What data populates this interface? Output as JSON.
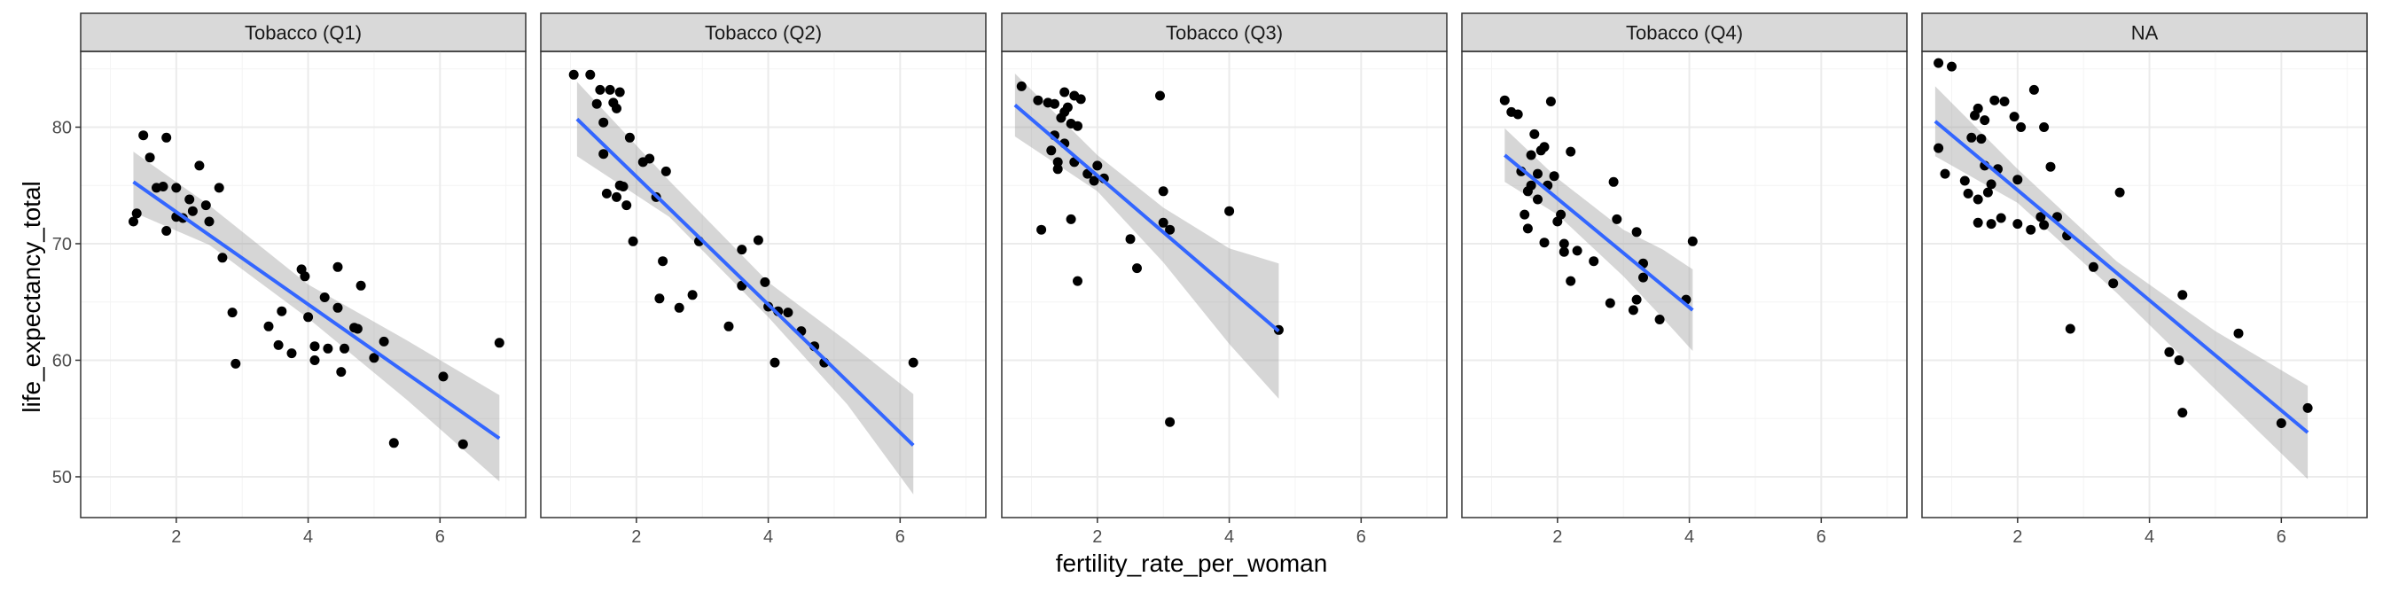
{
  "chart_data": {
    "type": "scatter",
    "xlabel": "fertility_rate_per_woman",
    "ylabel": "life_expectancy_total",
    "xlim": [
      0.55,
      7.3
    ],
    "ylim": [
      46.5,
      86.5
    ],
    "x_ticks": [
      2,
      4,
      6
    ],
    "y_ticks": [
      50,
      60,
      70,
      80
    ],
    "grid": true,
    "smooth": "linear fit with 95% confidence band",
    "colors": {
      "points": "#000000",
      "fit_line": "#3366ff",
      "band": "#999999",
      "strip_bg": "#d9d9d9",
      "grid_major": "#ebebeb",
      "grid_minor": "#f4f4f4",
      "panel_border": "#333333",
      "tick_text": "#4d4d4d"
    },
    "panels": [
      {
        "name": "Tobacco (Q1)",
        "fit": {
          "x": [
            1.35,
            6.9
          ],
          "y": [
            75.3,
            53.3
          ]
        },
        "band": {
          "x": [
            1.35,
            2.5,
            4.0,
            5.5,
            6.9
          ],
          "lo": [
            72.7,
            69.9,
            63.6,
            56.6,
            49.6
          ],
          "hi": [
            77.9,
            73.3,
            66.5,
            61.7,
            57.0
          ]
        },
        "points": [
          [
            1.35,
            71.9
          ],
          [
            1.4,
            72.6
          ],
          [
            1.5,
            79.3
          ],
          [
            1.6,
            77.4
          ],
          [
            1.7,
            74.8
          ],
          [
            1.8,
            74.9
          ],
          [
            1.85,
            79.1
          ],
          [
            1.85,
            71.1
          ],
          [
            2.0,
            74.8
          ],
          [
            2.0,
            72.3
          ],
          [
            2.1,
            72.2
          ],
          [
            2.2,
            73.8
          ],
          [
            2.25,
            72.8
          ],
          [
            2.35,
            76.7
          ],
          [
            2.45,
            73.3
          ],
          [
            2.5,
            71.9
          ],
          [
            2.65,
            74.8
          ],
          [
            2.7,
            68.8
          ],
          [
            2.85,
            64.1
          ],
          [
            2.9,
            59.7
          ],
          [
            3.4,
            62.9
          ],
          [
            3.6,
            64.2
          ],
          [
            3.55,
            61.3
          ],
          [
            3.75,
            60.6
          ],
          [
            3.9,
            67.8
          ],
          [
            3.95,
            67.2
          ],
          [
            4.0,
            63.7
          ],
          [
            4.1,
            61.2
          ],
          [
            4.1,
            60.0
          ],
          [
            4.25,
            65.4
          ],
          [
            4.3,
            61.0
          ],
          [
            4.45,
            68.0
          ],
          [
            4.45,
            64.5
          ],
          [
            4.5,
            59.0
          ],
          [
            4.55,
            61.0
          ],
          [
            4.7,
            62.8
          ],
          [
            4.75,
            62.7
          ],
          [
            4.8,
            66.4
          ],
          [
            5.0,
            60.2
          ],
          [
            5.15,
            61.6
          ],
          [
            5.3,
            52.9
          ],
          [
            6.05,
            58.6
          ],
          [
            6.35,
            52.8
          ],
          [
            6.9,
            61.5
          ]
        ]
      },
      {
        "name": "Tobacco (Q2)",
        "fit": {
          "x": [
            1.1,
            6.2
          ],
          "y": [
            80.7,
            52.7
          ]
        },
        "band": {
          "x": [
            1.1,
            2.5,
            4.0,
            5.2,
            6.2
          ],
          "lo": [
            77.5,
            72.3,
            63.7,
            56.2,
            48.5
          ],
          "hi": [
            83.9,
            75.4,
            66.7,
            61.6,
            57.1
          ]
        },
        "points": [
          [
            1.05,
            84.5
          ],
          [
            1.3,
            84.5
          ],
          [
            1.45,
            83.2
          ],
          [
            1.4,
            82.0
          ],
          [
            1.5,
            80.4
          ],
          [
            1.5,
            77.7
          ],
          [
            1.55,
            74.3
          ],
          [
            1.6,
            83.2
          ],
          [
            1.65,
            82.1
          ],
          [
            1.7,
            74.0
          ],
          [
            1.7,
            81.6
          ],
          [
            1.75,
            83.0
          ],
          [
            1.75,
            75.0
          ],
          [
            1.8,
            74.9
          ],
          [
            1.85,
            73.3
          ],
          [
            1.9,
            79.1
          ],
          [
            1.95,
            70.2
          ],
          [
            2.1,
            77.0
          ],
          [
            2.2,
            77.3
          ],
          [
            2.3,
            74.0
          ],
          [
            2.35,
            65.3
          ],
          [
            2.4,
            68.5
          ],
          [
            2.45,
            76.2
          ],
          [
            2.65,
            64.5
          ],
          [
            2.85,
            65.6
          ],
          [
            2.95,
            70.2
          ],
          [
            3.4,
            62.9
          ],
          [
            3.6,
            66.4
          ],
          [
            3.6,
            69.5
          ],
          [
            3.85,
            70.3
          ],
          [
            3.95,
            66.7
          ],
          [
            4.0,
            64.6
          ],
          [
            4.1,
            59.8
          ],
          [
            4.15,
            64.2
          ],
          [
            4.3,
            64.1
          ],
          [
            4.5,
            62.5
          ],
          [
            4.7,
            61.2
          ],
          [
            4.85,
            59.8
          ],
          [
            6.2,
            59.8
          ]
        ]
      },
      {
        "name": "Tobacco (Q3)",
        "fit": {
          "x": [
            0.75,
            4.75
          ],
          "y": [
            81.9,
            62.5
          ]
        },
        "band": {
          "x": [
            0.75,
            2.0,
            3.0,
            4.0,
            4.75
          ],
          "lo": [
            79.2,
            74.5,
            68.4,
            61.4,
            56.7
          ],
          "hi": [
            84.6,
            77.6,
            73.1,
            69.6,
            68.3
          ]
        },
        "points": [
          [
            0.85,
            83.5
          ],
          [
            1.1,
            82.3
          ],
          [
            1.15,
            71.2
          ],
          [
            1.25,
            82.1
          ],
          [
            1.3,
            78.0
          ],
          [
            1.35,
            82.0
          ],
          [
            1.35,
            79.3
          ],
          [
            1.4,
            76.4
          ],
          [
            1.4,
            77.0
          ],
          [
            1.45,
            80.8
          ],
          [
            1.5,
            81.3
          ],
          [
            1.5,
            83.0
          ],
          [
            1.5,
            78.6
          ],
          [
            1.55,
            81.7
          ],
          [
            1.6,
            72.1
          ],
          [
            1.6,
            80.3
          ],
          [
            1.65,
            82.7
          ],
          [
            1.65,
            77.0
          ],
          [
            1.75,
            82.4
          ],
          [
            1.7,
            80.1
          ],
          [
            1.7,
            66.8
          ],
          [
            1.85,
            76.0
          ],
          [
            1.95,
            75.4
          ],
          [
            2.0,
            76.7
          ],
          [
            2.1,
            75.6
          ],
          [
            2.5,
            70.4
          ],
          [
            2.6,
            67.9
          ],
          [
            2.95,
            82.7
          ],
          [
            3.0,
            74.5
          ],
          [
            3.0,
            71.8
          ],
          [
            3.1,
            71.2
          ],
          [
            3.1,
            54.7
          ],
          [
            4.0,
            72.8
          ],
          [
            4.75,
            62.6
          ]
        ]
      },
      {
        "name": "Tobacco (Q4)",
        "fit": {
          "x": [
            1.2,
            4.05
          ],
          "y": [
            77.6,
            64.3
          ]
        },
        "band": {
          "x": [
            1.2,
            2.0,
            3.0,
            3.6,
            4.05
          ],
          "lo": [
            75.3,
            72.5,
            67.2,
            63.6,
            60.8
          ],
          "hi": [
            79.9,
            75.6,
            71.2,
            69.5,
            67.8
          ]
        },
        "points": [
          [
            1.2,
            82.3
          ],
          [
            1.3,
            81.3
          ],
          [
            1.4,
            81.1
          ],
          [
            1.45,
            76.2
          ],
          [
            1.5,
            72.5
          ],
          [
            1.55,
            74.5
          ],
          [
            1.6,
            75.0
          ],
          [
            1.55,
            71.3
          ],
          [
            1.6,
            77.6
          ],
          [
            1.65,
            79.4
          ],
          [
            1.7,
            76.0
          ],
          [
            1.7,
            73.8
          ],
          [
            1.75,
            78.0
          ],
          [
            1.8,
            78.3
          ],
          [
            1.8,
            70.1
          ],
          [
            1.85,
            75.0
          ],
          [
            1.9,
            82.2
          ],
          [
            1.95,
            75.8
          ],
          [
            2.0,
            71.9
          ],
          [
            2.05,
            72.5
          ],
          [
            2.1,
            70.0
          ],
          [
            2.1,
            69.3
          ],
          [
            2.2,
            77.9
          ],
          [
            2.2,
            66.8
          ],
          [
            2.3,
            69.4
          ],
          [
            2.55,
            68.5
          ],
          [
            2.8,
            64.9
          ],
          [
            2.85,
            75.3
          ],
          [
            2.9,
            72.1
          ],
          [
            3.15,
            64.3
          ],
          [
            3.2,
            65.2
          ],
          [
            3.2,
            71.0
          ],
          [
            3.3,
            68.3
          ],
          [
            3.3,
            67.1
          ],
          [
            3.55,
            63.5
          ],
          [
            3.95,
            65.2
          ],
          [
            4.05,
            70.2
          ]
        ]
      },
      {
        "name": "NA",
        "fit": {
          "x": [
            0.75,
            6.4
          ],
          "y": [
            80.5,
            53.8
          ]
        },
        "band": {
          "x": [
            0.75,
            2.0,
            3.5,
            5.0,
            6.4
          ],
          "lo": [
            77.5,
            73.5,
            65.8,
            57.5,
            49.8
          ],
          "hi": [
            83.5,
            76.4,
            68.5,
            62.5,
            57.8
          ]
        },
        "points": [
          [
            0.8,
            85.5
          ],
          [
            0.8,
            78.2
          ],
          [
            0.9,
            76.0
          ],
          [
            1.0,
            85.2
          ],
          [
            1.2,
            75.4
          ],
          [
            1.25,
            74.3
          ],
          [
            1.3,
            79.1
          ],
          [
            1.35,
            81.0
          ],
          [
            1.4,
            81.6
          ],
          [
            1.4,
            73.8
          ],
          [
            1.4,
            71.8
          ],
          [
            1.45,
            79.0
          ],
          [
            1.5,
            80.6
          ],
          [
            1.5,
            76.7
          ],
          [
            1.55,
            74.4
          ],
          [
            1.6,
            71.7
          ],
          [
            1.6,
            75.1
          ],
          [
            1.65,
            82.3
          ],
          [
            1.7,
            76.4
          ],
          [
            1.75,
            72.2
          ],
          [
            1.8,
            82.2
          ],
          [
            1.95,
            80.9
          ],
          [
            2.0,
            75.5
          ],
          [
            2.0,
            71.7
          ],
          [
            2.05,
            80.0
          ],
          [
            2.2,
            71.2
          ],
          [
            2.25,
            83.2
          ],
          [
            2.35,
            72.3
          ],
          [
            2.4,
            80.0
          ],
          [
            2.4,
            71.6
          ],
          [
            2.5,
            76.6
          ],
          [
            2.6,
            72.3
          ],
          [
            2.75,
            70.7
          ],
          [
            2.8,
            62.7
          ],
          [
            3.15,
            68.0
          ],
          [
            3.45,
            66.6
          ],
          [
            3.55,
            74.4
          ],
          [
            4.3,
            60.7
          ],
          [
            4.45,
            60.0
          ],
          [
            4.5,
            55.5
          ],
          [
            4.5,
            65.6
          ],
          [
            5.35,
            62.3
          ],
          [
            6.0,
            54.6
          ],
          [
            6.4,
            55.9
          ]
        ]
      }
    ]
  }
}
